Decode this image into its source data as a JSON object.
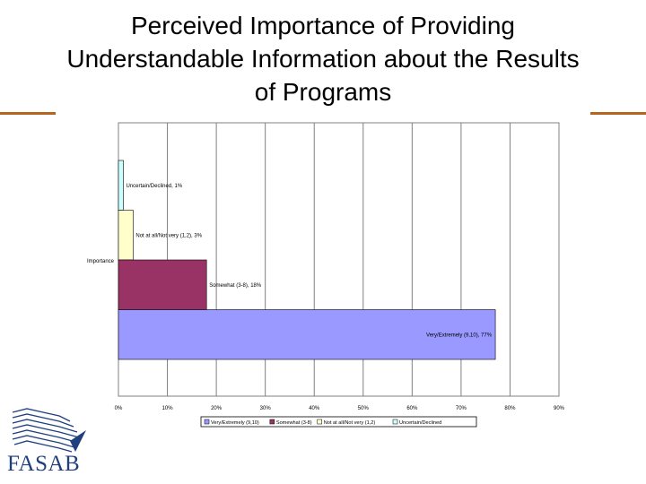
{
  "slide": {
    "title": "Perceived Importance of Providing Understandable Information about the Results of Programs",
    "rule_color": "#b5651d"
  },
  "logo": {
    "text": "FASAB",
    "color": "#1f3f7f"
  },
  "chart_data": {
    "type": "bar",
    "orientation": "horizontal",
    "categories": [
      "Importance"
    ],
    "series": [
      {
        "name": "Very/Extremely (9,10)",
        "values": [
          77
        ],
        "label": "Very/Extremely (9,10), 77%",
        "color": "#9999ff"
      },
      {
        "name": "Somewhat (3-8)",
        "values": [
          18
        ],
        "label": "Somewhat (3-8), 18%",
        "color": "#993366"
      },
      {
        "name": "Not at all/Not very (1,2)",
        "values": [
          3
        ],
        "label": "Not at all/Not very (1,2), 3%",
        "color": "#ffffcc"
      },
      {
        "name": "Uncertain/Declined",
        "values": [
          1
        ],
        "label": "Uncertain/Declined, 1%",
        "color": "#ccffff"
      }
    ],
    "xlim": [
      0,
      90
    ],
    "xticks": [
      "0%",
      "10%",
      "20%",
      "30%",
      "40%",
      "50%",
      "60%",
      "70%",
      "80%",
      "90%"
    ],
    "grid": true,
    "legend_position": "bottom"
  }
}
